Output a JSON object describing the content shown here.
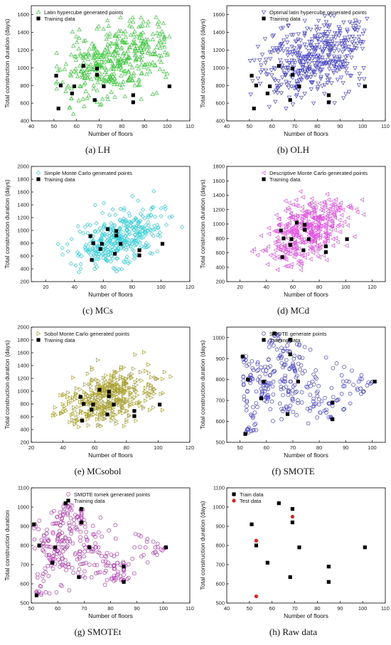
{
  "chart_data": [
    {
      "type": "scatter",
      "caption": "(a) LH",
      "xlabel": "Number of floors",
      "ylabel": "Total construction duration (days)",
      "xlim": [
        40,
        110
      ],
      "ylim": [
        400,
        1700
      ],
      "xticks": [
        40,
        50,
        60,
        70,
        80,
        90,
        100,
        110
      ],
      "yticks": [
        400,
        600,
        800,
        1000,
        1200,
        1400,
        1600
      ],
      "legend_position": "top-left",
      "generated": {
        "name": "Latin hypercube generated points",
        "marker": "triangle-up",
        "color": "#3cc83c",
        "n": 420,
        "center": [
          78,
          1100
        ],
        "spread": [
          13,
          230
        ],
        "corr": 0.45,
        "xrange": [
          50,
          102
        ],
        "yrange": [
          460,
          1600
        ],
        "seed": 11
      },
      "training": {
        "name": "Training data",
        "x": [
          51,
          52,
          53,
          58,
          59,
          63,
          68,
          69,
          69,
          72,
          85,
          85,
          101
        ],
        "y": [
          910,
          540,
          800,
          710,
          790,
          1020,
          635,
          990,
          920,
          790,
          690,
          610,
          790
        ]
      }
    },
    {
      "type": "scatter",
      "caption": "(b) OLH",
      "xlabel": "Number of floors",
      "ylabel": "Total construction duration (days)",
      "xlim": [
        40,
        110
      ],
      "ylim": [
        400,
        1700
      ],
      "xticks": [
        40,
        50,
        60,
        70,
        80,
        90,
        100,
        110
      ],
      "yticks": [
        400,
        600,
        800,
        1000,
        1200,
        1400,
        1600
      ],
      "legend_position": "top-right",
      "generated": {
        "name": "Optimal latin hypercube generated points",
        "marker": "triangle-down",
        "color": "#4a48c8",
        "n": 430,
        "center": [
          78,
          1100
        ],
        "spread": [
          13,
          240
        ],
        "corr": 0.4,
        "xrange": [
          50,
          102
        ],
        "yrange": [
          540,
          1620
        ],
        "seed": 23
      },
      "training": {
        "name": "Training data",
        "x": [
          51,
          52,
          53,
          58,
          59,
          63,
          68,
          69,
          69,
          72,
          85,
          85,
          101
        ],
        "y": [
          910,
          540,
          800,
          710,
          790,
          1020,
          635,
          990,
          920,
          790,
          690,
          610,
          790
        ]
      }
    },
    {
      "type": "scatter",
      "caption": "(c) MCs",
      "xlabel": "Number of floors",
      "ylabel": "Total construction duration (days)",
      "xlim": [
        10,
        120
      ],
      "ylim": [
        200,
        2000
      ],
      "xticks": [
        20,
        40,
        60,
        80,
        100,
        120
      ],
      "yticks": [
        200,
        400,
        600,
        800,
        1000,
        1200,
        1400,
        1600,
        1800,
        2000
      ],
      "legend_position": "top-left",
      "generated": {
        "name": "Simple Monte Carlo generated points",
        "marker": "diamond",
        "color": "#35d0d8",
        "n": 380,
        "center": [
          72,
          880
        ],
        "spread": [
          15,
          230
        ],
        "corr": 0.45,
        "xrange": [
          18,
          115
        ],
        "yrange": [
          320,
          1860
        ],
        "seed": 37
      },
      "training": {
        "name": "Training data",
        "x": [
          51,
          52,
          53,
          58,
          59,
          63,
          68,
          69,
          69,
          72,
          85,
          85,
          101
        ],
        "y": [
          910,
          540,
          800,
          710,
          790,
          1020,
          635,
          990,
          920,
          790,
          690,
          610,
          790
        ]
      }
    },
    {
      "type": "scatter",
      "caption": "(d) MCd",
      "xlabel": "Number of floors",
      "ylabel": "Total construction duration (days)",
      "xlim": [
        10,
        130
      ],
      "ylim": [
        200,
        1800
      ],
      "xticks": [
        20,
        40,
        60,
        80,
        100,
        120
      ],
      "yticks": [
        200,
        400,
        600,
        800,
        1000,
        1200,
        1400,
        1600,
        1800
      ],
      "legend_position": "top-right",
      "generated": {
        "name": "Descriptive Monte Carlo generated points",
        "marker": "triangle-left",
        "color": "#e055e0",
        "n": 420,
        "center": [
          70,
          880
        ],
        "spread": [
          15,
          230
        ],
        "corr": 0.45,
        "xrange": [
          20,
          120
        ],
        "yrange": [
          300,
          1560
        ],
        "seed": 51
      },
      "training": {
        "name": "Training data",
        "x": [
          51,
          52,
          53,
          58,
          59,
          63,
          68,
          69,
          69,
          72,
          85,
          85,
          101
        ],
        "y": [
          910,
          540,
          800,
          710,
          790,
          1020,
          635,
          990,
          920,
          790,
          690,
          610,
          790
        ]
      }
    },
    {
      "type": "scatter",
      "caption": "(e) MCsobol",
      "xlabel": "Number of floors",
      "ylabel": "Total construction duration (days)",
      "xlim": [
        20,
        120
      ],
      "ylim": [
        200,
        2000
      ],
      "xticks": [
        20,
        40,
        60,
        80,
        100,
        120
      ],
      "yticks": [
        200,
        400,
        600,
        800,
        1000,
        1200,
        1400,
        1600,
        1800,
        2000
      ],
      "legend_position": "top-left",
      "generated": {
        "name": "Sobol Monte Carlo generated points",
        "marker": "triangle-right",
        "color": "#a8a030",
        "n": 420,
        "center": [
          68,
          900
        ],
        "spread": [
          15,
          220
        ],
        "corr": 0.45,
        "xrange": [
          32,
          110
        ],
        "yrange": [
          440,
          1800
        ],
        "seed": 67
      },
      "training": {
        "name": "Training data",
        "x": [
          51,
          52,
          53,
          58,
          59,
          63,
          68,
          69,
          69,
          72,
          85,
          85,
          101
        ],
        "y": [
          910,
          540,
          800,
          710,
          790,
          1020,
          635,
          990,
          920,
          790,
          690,
          610,
          790
        ]
      }
    },
    {
      "type": "scatter",
      "caption": "(f) SMOTE",
      "xlabel": "Number of floors",
      "ylabel": "Total construction duration (days)",
      "xlim": [
        45,
        105
      ],
      "ylim": [
        500,
        1050
      ],
      "xticks": [
        50,
        60,
        70,
        80,
        90,
        100
      ],
      "yticks": [
        500,
        600,
        700,
        800,
        900,
        1000
      ],
      "legend_position": "top-right",
      "generated": {
        "name": "SMOTE generate points",
        "marker": "circle",
        "color": "#4a48c8",
        "mode": "interp",
        "n": 320,
        "seed": 79
      },
      "training": {
        "name": "Training data",
        "x": [
          51,
          52,
          53,
          58,
          59,
          63,
          68,
          69,
          69,
          72,
          85,
          85,
          101
        ],
        "y": [
          910,
          540,
          800,
          710,
          790,
          1020,
          635,
          990,
          920,
          790,
          690,
          610,
          790
        ]
      }
    },
    {
      "type": "scatter",
      "caption": "(g) SMOTEt",
      "xlabel": "Number of floors",
      "ylabel": "Total construction duration",
      "xlim": [
        50,
        110
      ],
      "ylim": [
        500,
        1100
      ],
      "xticks": [
        50,
        60,
        70,
        80,
        90,
        100,
        110
      ],
      "yticks": [
        500,
        600,
        700,
        800,
        900,
        1000,
        1100
      ],
      "legend_position": "top-right",
      "generated": {
        "name": "SMOTE tomek generated points",
        "marker": "circle",
        "color": "#b040b0",
        "mode": "interp",
        "n": 340,
        "seed": 91
      },
      "training": {
        "name": "Training data",
        "x": [
          51,
          52,
          53,
          58,
          59,
          63,
          68,
          69,
          69,
          72,
          85,
          85,
          101
        ],
        "y": [
          910,
          540,
          800,
          710,
          790,
          1020,
          635,
          990,
          920,
          790,
          690,
          610,
          790
        ]
      }
    },
    {
      "type": "scatter",
      "caption": "(h) Raw data",
      "xlabel": "Number of floors",
      "ylabel": "Total construction duration (days)",
      "xlim": [
        40,
        110
      ],
      "ylim": [
        500,
        1100
      ],
      "xticks": [
        40,
        50,
        60,
        70,
        80,
        90,
        100,
        110
      ],
      "yticks": [
        500,
        600,
        700,
        800,
        900,
        1000,
        1100
      ],
      "legend_position": "top-left",
      "training": {
        "name": "Train data",
        "x": [
          51,
          53,
          58,
          63,
          68,
          69,
          69,
          72,
          85,
          85,
          101
        ],
        "y": [
          910,
          800,
          710,
          1020,
          635,
          990,
          920,
          790,
          690,
          610,
          790
        ],
        "color": "#000000"
      },
      "test": {
        "name": "Test data",
        "x": [
          53,
          53,
          69
        ],
        "y": [
          825,
          535,
          950
        ],
        "color": "#e02020"
      }
    }
  ]
}
